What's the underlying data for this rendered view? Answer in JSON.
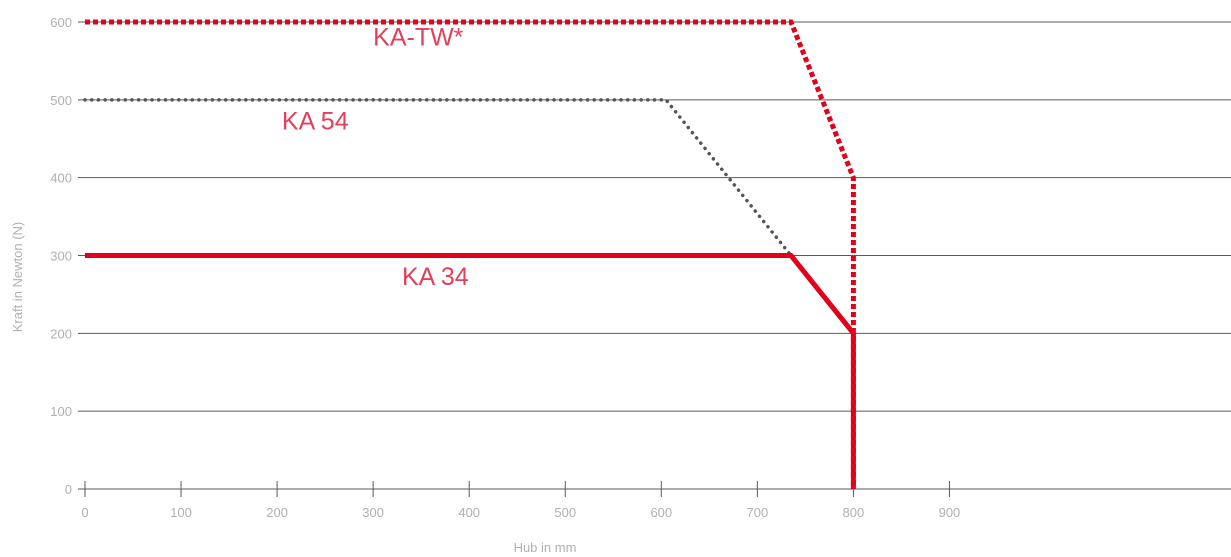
{
  "chart_data": {
    "type": "line",
    "xlabel": "Hub in mm",
    "ylabel": "Kraft in Newton (N)",
    "xlim": [
      0,
      1200
    ],
    "ylim": [
      0,
      600
    ],
    "x_ticks": [
      0,
      100,
      200,
      300,
      400,
      500,
      600,
      700,
      800,
      900
    ],
    "y_ticks": [
      0,
      100,
      200,
      300,
      400,
      500,
      600
    ],
    "grid": "horizontal",
    "series": [
      {
        "name": "KA-TW*",
        "color": "#e2001a",
        "style": "dotted-thick",
        "points": [
          [
            0,
            600
          ],
          [
            735,
            600
          ],
          [
            800,
            400
          ],
          [
            800,
            0
          ]
        ]
      },
      {
        "name": "KA 54",
        "color": "#555555",
        "style": "dotted-thin",
        "points": [
          [
            0,
            500
          ],
          [
            605,
            500
          ],
          [
            735,
            300
          ],
          [
            800,
            200
          ],
          [
            800,
            0
          ]
        ]
      },
      {
        "name": "KA 34",
        "color": "#e2001a",
        "style": "solid",
        "points": [
          [
            0,
            300
          ],
          [
            735,
            300
          ],
          [
            800,
            200
          ],
          [
            800,
            0
          ]
        ]
      }
    ],
    "annotations": [
      {
        "text": "KA-TW*",
        "series": "KA-TW*",
        "x": 300,
        "y": 570
      },
      {
        "text": "KA 54",
        "series": "KA 54",
        "x": 205,
        "y": 462
      },
      {
        "text": "KA 34",
        "series": "KA 34",
        "x": 330,
        "y": 262
      }
    ]
  }
}
